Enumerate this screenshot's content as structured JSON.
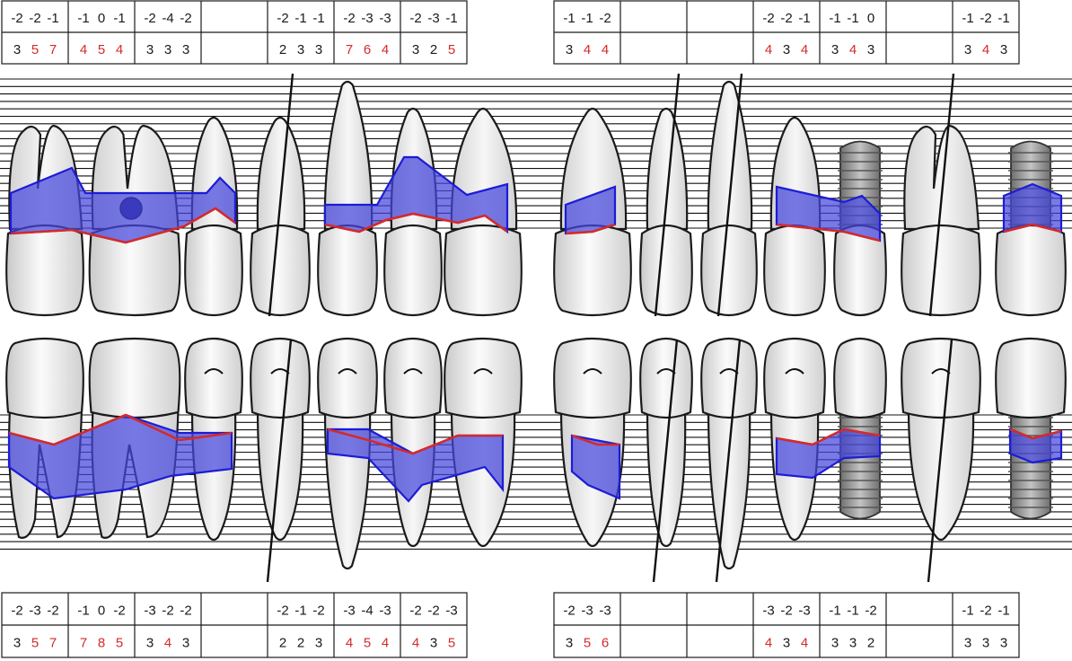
{
  "colors": {
    "pocket_fill": "#4646dc",
    "pocket_outline": "#1c1cd6",
    "gingival_margin": "#d42a2a",
    "deep_pocket_text": "#d42a2a",
    "normal_text": "#1a1a1a"
  },
  "legend": {
    "blue_area": "probing pocket depth",
    "red_line": "gingival margin",
    "black_slash": "missing / extracted tooth",
    "grey_screw": "implant",
    "dark_dot": "furcation"
  },
  "upper": {
    "top_tables": [
      {
        "groups": [
          {
            "gm": [
              "-2",
              "-2",
              "-1"
            ],
            "pd": [
              "3",
              "5",
              "7"
            ],
            "pd_red": [
              false,
              true,
              true
            ]
          },
          {
            "gm": [
              "-1",
              "0",
              "-1"
            ],
            "pd": [
              "4",
              "5",
              "4"
            ],
            "pd_red": [
              true,
              true,
              true
            ]
          },
          {
            "gm": [
              "-2",
              "-4",
              "-2"
            ],
            "pd": [
              "3",
              "3",
              "3"
            ],
            "pd_red": [
              false,
              false,
              false
            ]
          },
          {
            "gm": [
              "",
              "",
              ""
            ],
            "pd": [
              "",
              "",
              ""
            ],
            "pd_red": [
              false,
              false,
              false
            ]
          },
          {
            "gm": [
              "-2",
              "-1",
              "-1"
            ],
            "pd": [
              "2",
              "3",
              "3"
            ],
            "pd_red": [
              false,
              false,
              false
            ]
          },
          {
            "gm": [
              "-2",
              "-3",
              "-3"
            ],
            "pd": [
              "7",
              "6",
              "4"
            ],
            "pd_red": [
              true,
              true,
              true
            ]
          },
          {
            "gm": [
              "-2",
              "-3",
              "-1"
            ],
            "pd": [
              "3",
              "2",
              "5"
            ],
            "pd_red": [
              false,
              false,
              true
            ]
          }
        ]
      },
      {
        "groups": [
          {
            "gm": [
              "-1",
              "-1",
              "-2"
            ],
            "pd": [
              "3",
              "4",
              "4"
            ],
            "pd_red": [
              false,
              true,
              true
            ]
          },
          {
            "gm": [
              "",
              "",
              ""
            ],
            "pd": [
              "",
              "",
              ""
            ],
            "pd_red": [
              false,
              false,
              false
            ]
          },
          {
            "gm": [
              "",
              "",
              ""
            ],
            "pd": [
              "",
              "",
              ""
            ],
            "pd_red": [
              false,
              false,
              false
            ]
          },
          {
            "gm": [
              "-2",
              "-2",
              "-1"
            ],
            "pd": [
              "4",
              "3",
              "4"
            ],
            "pd_red": [
              true,
              false,
              true
            ]
          },
          {
            "gm": [
              "-1",
              "-1",
              "0"
            ],
            "pd": [
              "3",
              "4",
              "3"
            ],
            "pd_red": [
              false,
              true,
              false
            ]
          },
          {
            "gm": [
              "",
              "",
              ""
            ],
            "pd": [
              "",
              "",
              ""
            ],
            "pd_red": [
              false,
              false,
              false
            ]
          },
          {
            "gm": [
              "-1",
              "-2",
              "-1"
            ],
            "pd": [
              "3",
              "4",
              "3"
            ],
            "pd_red": [
              false,
              true,
              false
            ]
          }
        ]
      }
    ],
    "teeth": [
      {
        "id": "upper-molar-1",
        "type": "molar",
        "status": "present",
        "furcation": false
      },
      {
        "id": "upper-molar-2",
        "type": "molar",
        "status": "present",
        "furcation": true
      },
      {
        "id": "upper-premolar-1",
        "type": "premolar",
        "status": "present",
        "furcation": false
      },
      {
        "id": "upper-premolar-2",
        "type": "premolar",
        "status": "missing",
        "furcation": false
      },
      {
        "id": "upper-canine",
        "type": "canine",
        "status": "present",
        "furcation": false
      },
      {
        "id": "upper-lateral-incisor",
        "type": "incisor",
        "status": "present",
        "furcation": false
      },
      {
        "id": "upper-central-incisor-r",
        "type": "incisor",
        "status": "present",
        "furcation": false
      },
      {
        "id": "upper-central-incisor-l",
        "type": "incisor",
        "status": "present",
        "furcation": false
      },
      {
        "id": "upper-lateral-incisor-l",
        "type": "incisor",
        "status": "missing",
        "furcation": false
      },
      {
        "id": "upper-canine-l",
        "type": "canine",
        "status": "missing",
        "furcation": false
      },
      {
        "id": "upper-premolar-l1",
        "type": "premolar",
        "status": "present",
        "furcation": false
      },
      {
        "id": "upper-implant-1",
        "type": "implant",
        "status": "implant",
        "furcation": false
      },
      {
        "id": "upper-molar-l1",
        "type": "molar",
        "status": "missing",
        "furcation": false
      },
      {
        "id": "upper-implant-2",
        "type": "implant",
        "status": "implant",
        "furcation": false
      }
    ]
  },
  "lower": {
    "bottom_tables": [
      {
        "groups": [
          {
            "gm": [
              "-2",
              "-3",
              "-2"
            ],
            "pd": [
              "3",
              "5",
              "7"
            ],
            "pd_red": [
              false,
              true,
              true
            ]
          },
          {
            "gm": [
              "-1",
              "0",
              "-2"
            ],
            "pd": [
              "7",
              "8",
              "5"
            ],
            "pd_red": [
              true,
              true,
              true
            ]
          },
          {
            "gm": [
              "-3",
              "-2",
              "-2"
            ],
            "pd": [
              "3",
              "4",
              "3"
            ],
            "pd_red": [
              false,
              true,
              false
            ]
          },
          {
            "gm": [
              "",
              "",
              ""
            ],
            "pd": [
              "",
              "",
              ""
            ],
            "pd_red": [
              false,
              false,
              false
            ]
          },
          {
            "gm": [
              "-2",
              "-1",
              "-2"
            ],
            "pd": [
              "2",
              "2",
              "3"
            ],
            "pd_red": [
              false,
              false,
              false
            ]
          },
          {
            "gm": [
              "-3",
              "-4",
              "-3"
            ],
            "pd": [
              "4",
              "5",
              "4"
            ],
            "pd_red": [
              true,
              true,
              true
            ]
          },
          {
            "gm": [
              "-2",
              "-2",
              "-3"
            ],
            "pd": [
              "4",
              "3",
              "5"
            ],
            "pd_red": [
              true,
              false,
              true
            ]
          }
        ]
      },
      {
        "groups": [
          {
            "gm": [
              "-2",
              "-3",
              "-3"
            ],
            "pd": [
              "3",
              "5",
              "6"
            ],
            "pd_red": [
              false,
              true,
              true
            ]
          },
          {
            "gm": [
              "",
              "",
              ""
            ],
            "pd": [
              "",
              "",
              ""
            ],
            "pd_red": [
              false,
              false,
              false
            ]
          },
          {
            "gm": [
              "",
              "",
              ""
            ],
            "pd": [
              "",
              "",
              ""
            ],
            "pd_red": [
              false,
              false,
              false
            ]
          },
          {
            "gm": [
              "-3",
              "-2",
              "-3"
            ],
            "pd": [
              "4",
              "3",
              "4"
            ],
            "pd_red": [
              true,
              false,
              true
            ]
          },
          {
            "gm": [
              "-1",
              "-1",
              "-2"
            ],
            "pd": [
              "3",
              "3",
              "2"
            ],
            "pd_red": [
              false,
              false,
              false
            ]
          },
          {
            "gm": [
              "",
              "",
              ""
            ],
            "pd": [
              "",
              "",
              ""
            ],
            "pd_red": [
              false,
              false,
              false
            ]
          },
          {
            "gm": [
              "-1",
              "-2",
              "-1"
            ],
            "pd": [
              "3",
              "3",
              "3"
            ],
            "pd_red": [
              false,
              false,
              false
            ]
          }
        ]
      }
    ],
    "teeth": [
      {
        "id": "lower-molar-1",
        "type": "molar",
        "status": "present"
      },
      {
        "id": "lower-molar-2",
        "type": "molar",
        "status": "present"
      },
      {
        "id": "lower-premolar-1",
        "type": "premolar",
        "status": "present"
      },
      {
        "id": "lower-premolar-2",
        "type": "premolar",
        "status": "missing"
      },
      {
        "id": "lower-canine",
        "type": "canine",
        "status": "present"
      },
      {
        "id": "lower-incisor-1",
        "type": "incisor",
        "status": "present"
      },
      {
        "id": "lower-incisor-2",
        "type": "incisor",
        "status": "present"
      },
      {
        "id": "lower-incisor-3",
        "type": "incisor",
        "status": "present"
      },
      {
        "id": "lower-incisor-4",
        "type": "incisor",
        "status": "missing"
      },
      {
        "id": "lower-canine-l",
        "type": "canine",
        "status": "missing"
      },
      {
        "id": "lower-premolar-l1",
        "type": "premolar",
        "status": "present"
      },
      {
        "id": "lower-implant-1",
        "type": "implant",
        "status": "implant"
      },
      {
        "id": "lower-premolar-l2",
        "type": "premolar",
        "status": "missing"
      },
      {
        "id": "lower-implant-2",
        "type": "implant",
        "status": "implant"
      }
    ]
  }
}
